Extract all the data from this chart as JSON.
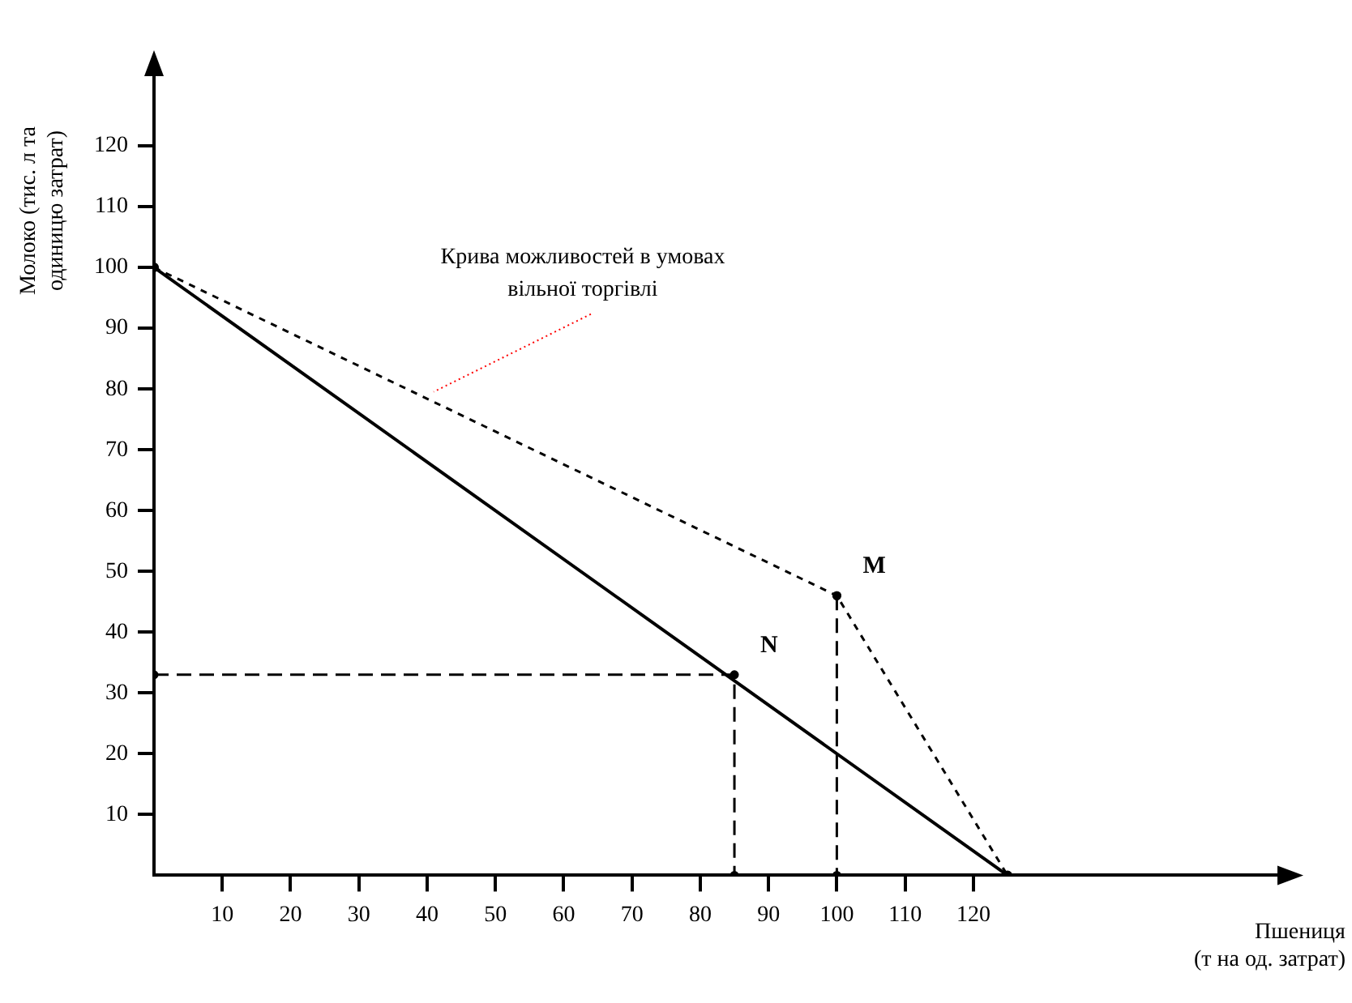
{
  "chart_data": {
    "type": "line",
    "xlabel": "Пшениця (т на од. затрат)",
    "ylabel": "Молоко (тис. л та одиницю затрат)",
    "xlim": [
      0,
      165
    ],
    "ylim": [
      0,
      132
    ],
    "xticks": [
      10,
      20,
      30,
      40,
      50,
      60,
      70,
      80,
      90,
      100,
      110,
      120
    ],
    "yticks": [
      10,
      20,
      30,
      40,
      50,
      60,
      70,
      80,
      90,
      100,
      110,
      120
    ],
    "grid": false,
    "legend": false,
    "series": [
      {
        "color": "#000000",
        "x": [
          0,
          125
        ],
        "values": [
          100,
          0
        ],
        "line_style": "solid",
        "marker": "circle"
      },
      {
        "color": "#000000",
        "x": [
          0,
          100,
          125
        ],
        "values": [
          100,
          46,
          0
        ],
        "line_style": "dotted",
        "marker": "circle"
      },
      {
        "color": "#000000",
        "x": [
          0,
          85,
          85
        ],
        "values": [
          33,
          33,
          0
        ],
        "line_style": "dashed",
        "marker": "circle"
      },
      {
        "color": "#000000",
        "x": [
          100,
          100
        ],
        "values": [
          46,
          0
        ],
        "line_style": "dashed",
        "marker": "circle"
      }
    ],
    "annotations": [
      {
        "text": "Крива можливостей в умовах вільної торгівлі",
        "x": 40,
        "y": 79
      },
      {
        "text": "M",
        "x": 100,
        "y": 46
      },
      {
        "text": "N",
        "x": 85,
        "y": 33
      }
    ]
  }
}
